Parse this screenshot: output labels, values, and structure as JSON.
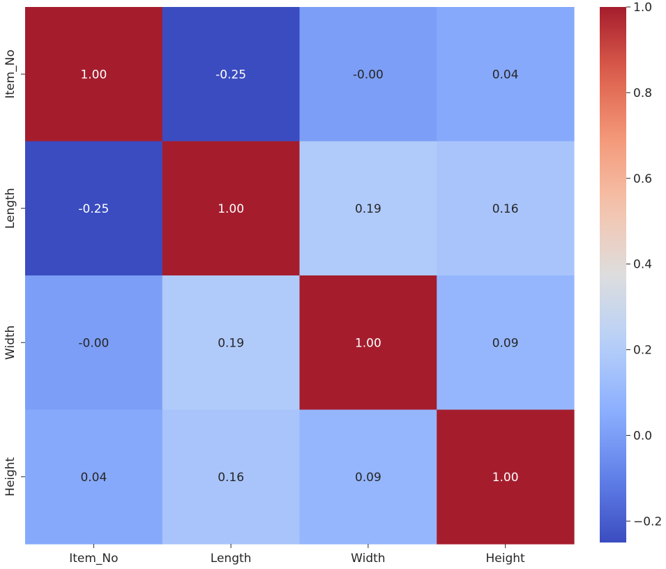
{
  "chart_data": {
    "type": "heatmap",
    "title": "",
    "xlabel": "",
    "ylabel": "",
    "x_labels": [
      "Item_No",
      "Length",
      "Width",
      "Height"
    ],
    "y_labels": [
      "Item_No",
      "Length",
      "Width",
      "Height"
    ],
    "values": [
      [
        1.0,
        -0.25,
        -0.0,
        0.04
      ],
      [
        -0.25,
        1.0,
        0.19,
        0.16
      ],
      [
        -0.0,
        0.19,
        1.0,
        0.09
      ],
      [
        0.04,
        0.16,
        0.09,
        1.0
      ]
    ],
    "annotations": [
      [
        "1.00",
        "-0.25",
        "-0.00",
        "0.04"
      ],
      [
        "-0.25",
        "1.00",
        "0.19",
        "0.16"
      ],
      [
        "-0.00",
        "0.19",
        "1.00",
        "0.09"
      ],
      [
        "0.04",
        "0.16",
        "0.09",
        "1.00"
      ]
    ],
    "colormap": "coolwarm",
    "vmin": -0.25,
    "vmax": 1.0,
    "colorbar_ticks": [
      -0.2,
      0.0,
      0.2,
      0.4,
      0.6,
      0.8,
      1.0
    ],
    "colorbar_tick_labels": [
      "−0.2",
      "0.0",
      "0.2",
      "0.4",
      "0.6",
      "0.8",
      "1.0"
    ]
  }
}
